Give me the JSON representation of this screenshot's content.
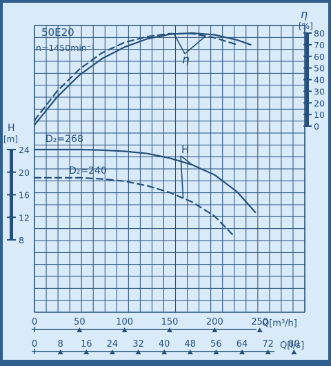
{
  "chart_data": {
    "type": "line",
    "title": "50E20",
    "subtitle": "n=1450min⁻¹",
    "colors": {
      "frame": "#2f5f8f",
      "paper": "#d9eaf8",
      "grid": "#264f7b",
      "curve": "#254f7c"
    },
    "x_axis_primary": {
      "label": "Q[m³/h]",
      "range": [
        0,
        300
      ],
      "ticks": [
        "0",
        "50",
        "100",
        "150",
        "200",
        "250"
      ]
    },
    "x_axis_secondary": {
      "label": "Q[l/s]",
      "range": [
        0,
        83.333
      ],
      "ticks": [
        "0",
        "8",
        "16",
        "24",
        "32",
        "40",
        "48",
        "56",
        "64",
        "72",
        "80"
      ]
    },
    "y_axis_head": {
      "label": "H",
      "unit": "[m]",
      "range": [
        8,
        24
      ],
      "ticks": [
        "24",
        "20",
        "16",
        "12",
        "8"
      ]
    },
    "y_axis_efficiency": {
      "label": "η",
      "unit": "[%]",
      "range": [
        0,
        80
      ],
      "ticks": [
        "80",
        "70",
        "60",
        "50",
        "40",
        "30",
        "20",
        "10",
        "0"
      ]
    },
    "series": [
      {
        "name": "D₂=268",
        "quantity": "H",
        "style": "solid",
        "x": [
          0,
          25,
          50,
          75,
          100,
          125,
          150,
          175,
          200,
          225,
          245
        ],
        "y": [
          24,
          24,
          24,
          23.9,
          23.7,
          23.3,
          22.5,
          21.3,
          19.5,
          16.5,
          12.9
        ]
      },
      {
        "name": "D₂=240",
        "quantity": "H",
        "style": "dashed",
        "x": [
          0,
          25,
          50,
          75,
          100,
          125,
          150,
          175,
          200,
          220
        ],
        "y": [
          19,
          19,
          19,
          18.8,
          18.4,
          17.6,
          16.4,
          14.7,
          12.2,
          8.9
        ]
      },
      {
        "name": "",
        "quantity": "η",
        "style": "solid",
        "for": "D₂=268",
        "x": [
          0,
          25,
          50,
          75,
          100,
          125,
          150,
          175,
          200,
          225,
          240
        ],
        "y": [
          1,
          25,
          44,
          58,
          68,
          75,
          79,
          80,
          78.5,
          74,
          70
        ]
      },
      {
        "name": "",
        "quantity": "η",
        "style": "dashed",
        "for": "D₂=240",
        "x": [
          0,
          25,
          50,
          75,
          100,
          125,
          150,
          175,
          200,
          225
        ],
        "y": [
          5,
          30,
          49,
          63,
          72,
          77,
          79.5,
          79.5,
          76,
          70
        ]
      }
    ],
    "annotations": {
      "head_curves": "H",
      "efficiency_curves": "η"
    },
    "grid": true,
    "legend": "none"
  }
}
